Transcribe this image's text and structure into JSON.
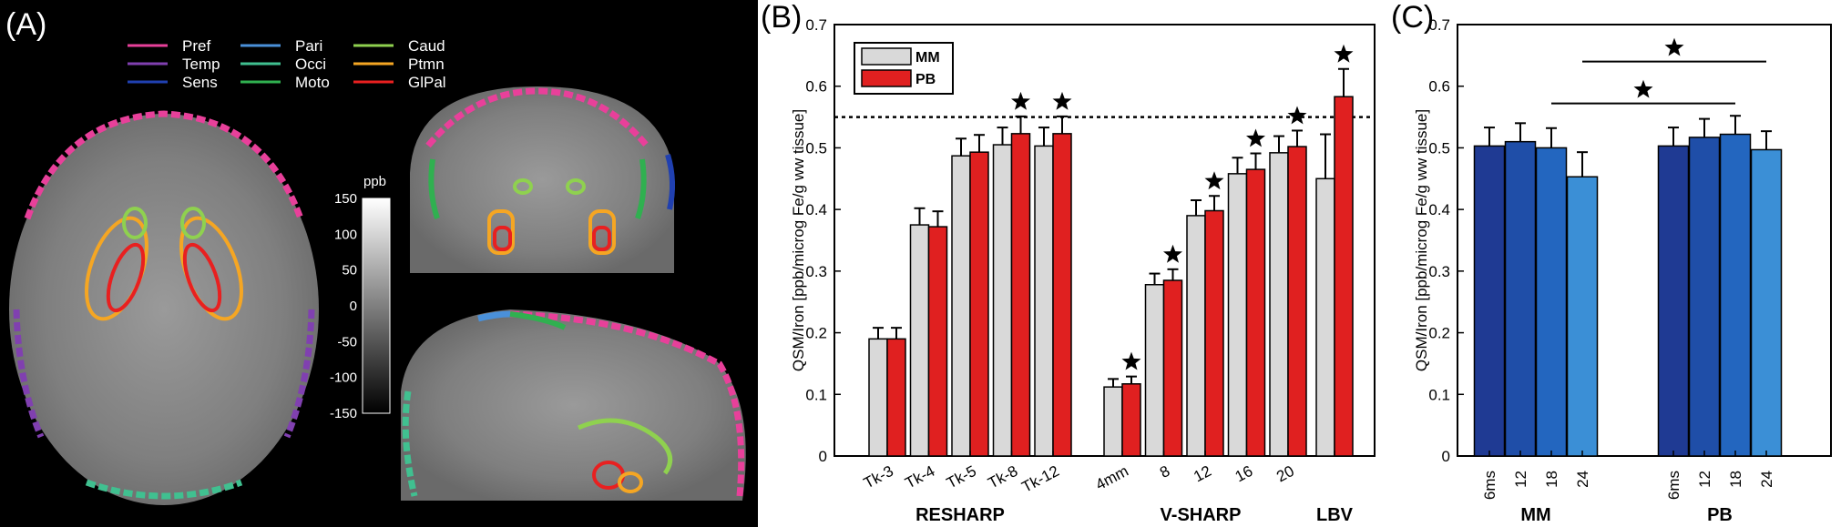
{
  "panel_a": {
    "letter": "(A)",
    "legend": [
      {
        "label": "Pref",
        "color": "#e8409a"
      },
      {
        "label": "Pari",
        "color": "#4a90d9"
      },
      {
        "label": "Caud",
        "color": "#8fd14f"
      },
      {
        "label": "Temp",
        "color": "#8040b0"
      },
      {
        "label": "Occi",
        "color": "#40c090"
      },
      {
        "label": "Ptmn",
        "color": "#f5a623"
      },
      {
        "label": "Sens",
        "color": "#2040b0"
      },
      {
        "label": "Moto",
        "color": "#30b050"
      },
      {
        "label": "GlPal",
        "color": "#e82020"
      }
    ],
    "colorbar": {
      "unit": "ppb",
      "ticks": [
        "150",
        "100",
        "50",
        "0",
        "-50",
        "-100",
        "-150"
      ]
    }
  },
  "chart_data": [
    {
      "type": "bar",
      "letter": "(B)",
      "ylabel": "QSM/Iron [ppb/microg Fe/g ww tissue]",
      "ylim": [
        0,
        0.7
      ],
      "yticks": [
        "0",
        "0.1",
        "0.2",
        "0.3",
        "0.4",
        "0.5",
        "0.6",
        "0.7"
      ],
      "reference_line": 0.55,
      "legend": {
        "placement": "top-left",
        "entries": [
          {
            "label": "MM",
            "color": "#d9d9d9"
          },
          {
            "label": "PB",
            "color": "#e02020"
          }
        ]
      },
      "groups": [
        {
          "label": "RESHARP",
          "categories": [
            "Tk-3",
            "Tk-4",
            "Tk-5",
            "Tk-8",
            "Tk-12"
          ]
        },
        {
          "label": "V-SHARP",
          "categories": [
            "4mm",
            "8",
            "12",
            "16",
            "20"
          ]
        },
        {
          "label": "LBV",
          "categories": [
            ""
          ]
        }
      ],
      "series": [
        {
          "name": "MM",
          "values": [
            0.19,
            0.375,
            0.487,
            0.505,
            0.503,
            0.112,
            0.278,
            0.39,
            0.458,
            0.492,
            0.45
          ],
          "errors": [
            0.018,
            0.027,
            0.028,
            0.028,
            0.03,
            0.013,
            0.018,
            0.025,
            0.026,
            0.027,
            0.072
          ]
        },
        {
          "name": "PB",
          "values": [
            0.19,
            0.372,
            0.493,
            0.523,
            0.523,
            0.117,
            0.285,
            0.398,
            0.465,
            0.502,
            0.583
          ],
          "errors": [
            0.018,
            0.025,
            0.028,
            0.028,
            0.028,
            0.012,
            0.018,
            0.024,
            0.026,
            0.026,
            0.045
          ]
        }
      ],
      "stars": [
        false,
        false,
        false,
        true,
        true,
        true,
        true,
        true,
        true,
        true,
        true
      ]
    },
    {
      "type": "bar",
      "letter": "(C)",
      "ylabel": "QSM/Iron [ppb/microg Fe/g ww tissue]",
      "ylim": [
        0,
        0.7
      ],
      "yticks": [
        "0",
        "0.1",
        "0.2",
        "0.3",
        "0.4",
        "0.5",
        "0.6",
        "0.7"
      ],
      "groups": [
        {
          "label": "MM",
          "categories": [
            "6ms",
            "12",
            "18",
            "24"
          ]
        },
        {
          "label": "PB",
          "categories": [
            "6ms",
            "12",
            "18",
            "24"
          ]
        }
      ],
      "values": [
        0.503,
        0.51,
        0.5,
        0.453,
        0.503,
        0.517,
        0.522,
        0.497
      ],
      "errors": [
        0.03,
        0.03,
        0.032,
        0.04,
        0.03,
        0.03,
        0.03,
        0.03
      ],
      "colors": [
        "#1f3a93",
        "#1f4ea8",
        "#2366bf",
        "#3b8fd6",
        "#1f3a93",
        "#1f4ea8",
        "#2366bf",
        "#3b8fd6"
      ],
      "significance": [
        {
          "from": 2,
          "to": 6,
          "level": 0.572
        },
        {
          "from": 3,
          "to": 7,
          "level": 0.64
        }
      ]
    }
  ]
}
